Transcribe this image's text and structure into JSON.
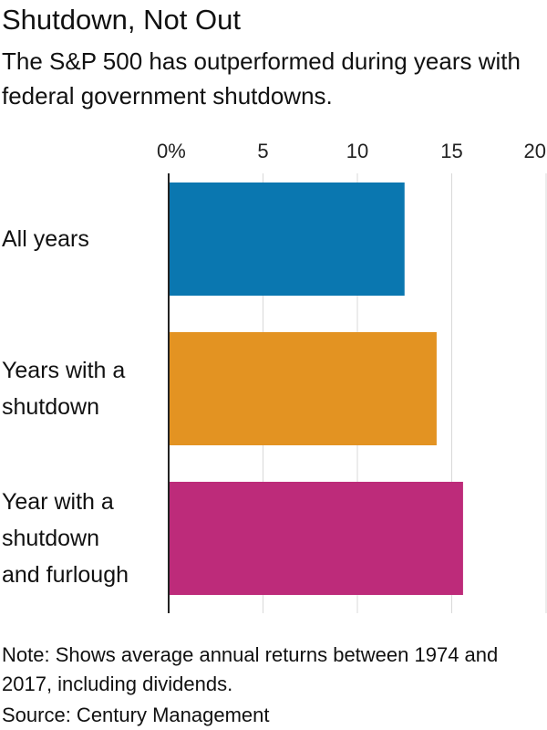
{
  "title": "Shutdown, Not Out",
  "subtitle": "The S&P 500 has outperformed during years with federal government shutdowns.",
  "note": "Note: Shows average annual returns between 1974 and 2017, including dividends.",
  "source": "Source: Century Management",
  "chart_data": {
    "type": "bar",
    "orientation": "horizontal",
    "categories": [
      [
        "All years"
      ],
      [
        "Years with a",
        "shutdown"
      ],
      [
        "Year with a",
        "shutdown",
        "and furlough"
      ]
    ],
    "values": [
      12.5,
      14.2,
      15.6
    ],
    "colors": [
      "#0a77b0",
      "#e39322",
      "#bd2b7a"
    ],
    "tick_values": [
      0,
      5,
      10,
      15,
      20
    ],
    "tick_labels": [
      "0%",
      "5",
      "10",
      "15",
      "20"
    ],
    "xlim": [
      0,
      20
    ],
    "grid": true,
    "axis_position": "top"
  }
}
